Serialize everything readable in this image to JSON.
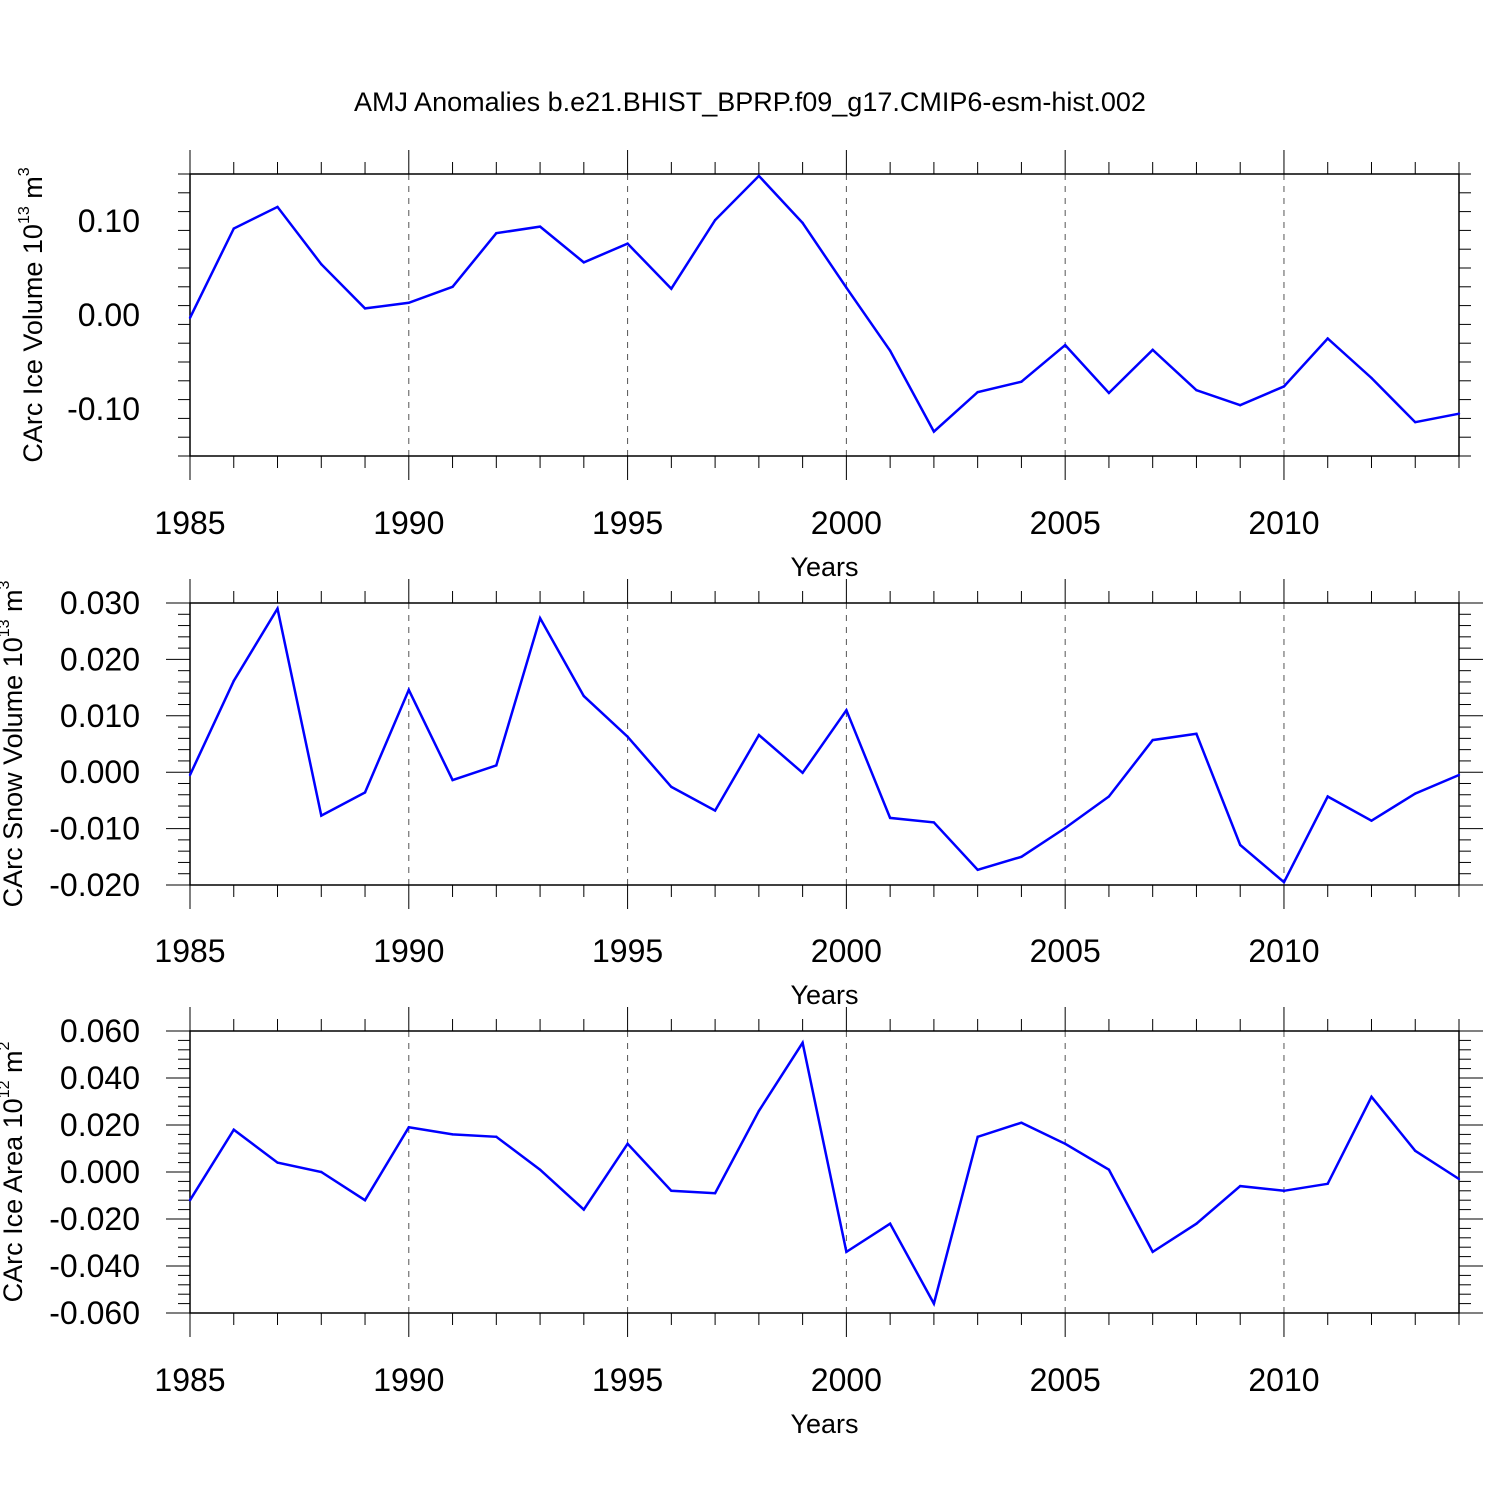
{
  "title": "AMJ Anomalies b.e21.BHIST_BPRP.f09_g17.CMIP6-esm-hist.002",
  "colors": {
    "series": "#0000ff",
    "axes": "#000000",
    "grid": "#555555"
  },
  "chart_data": [
    {
      "type": "line",
      "ylabel": {
        "base": "CArc Ice Volume 10",
        "exp": "13",
        "unit": " m",
        "unit_exp": "3"
      },
      "xlabel": "Years",
      "xlim": [
        1985,
        2014
      ],
      "ylim": [
        -0.15,
        0.15
      ],
      "xticks": [
        1985,
        1990,
        1995,
        2000,
        2005,
        2010
      ],
      "xtick_labels": [
        "1985",
        "1990",
        "1995",
        "2000",
        "2005",
        "2010"
      ],
      "yticks": [
        -0.1,
        0.0,
        0.1
      ],
      "ytick_labels": [
        "-0.10",
        "0.00",
        "0.10"
      ],
      "vgrid": [
        1990,
        1995,
        2000,
        2005,
        2010
      ],
      "series": [
        {
          "x": [
            1985,
            1986,
            1987,
            1988,
            1989,
            1990,
            1991,
            1992,
            1993,
            1994,
            1995,
            1996,
            1997,
            1998,
            1999,
            2000,
            2001,
            2002,
            2003,
            2004,
            2005,
            2006,
            2007,
            2008,
            2009,
            2010,
            2011,
            2012,
            2013,
            2014
          ],
          "values": [
            -0.003,
            0.092,
            0.115,
            0.054,
            0.007,
            0.013,
            0.03,
            0.087,
            0.094,
            0.056,
            0.076,
            0.028,
            0.101,
            0.148,
            0.098,
            0.029,
            -0.038,
            -0.124,
            -0.082,
            -0.071,
            -0.032,
            -0.083,
            -0.037,
            -0.08,
            -0.096,
            -0.076,
            -0.025,
            -0.067,
            -0.114,
            -0.105
          ]
        }
      ]
    },
    {
      "type": "line",
      "ylabel": {
        "base": "CArc Snow Volume 10",
        "exp": "13",
        "unit": " m",
        "unit_exp": "3"
      },
      "xlabel": "Years",
      "xlim": [
        1985,
        2014
      ],
      "ylim": [
        -0.02,
        0.03
      ],
      "xticks": [
        1985,
        1990,
        1995,
        2000,
        2005,
        2010
      ],
      "xtick_labels": [
        "1985",
        "1990",
        "1995",
        "2000",
        "2005",
        "2010"
      ],
      "yticks": [
        -0.02,
        -0.01,
        0.0,
        0.01,
        0.02,
        0.03
      ],
      "ytick_labels": [
        "-0.020",
        "-0.010",
        "0.000",
        "0.010",
        "0.020",
        "0.030"
      ],
      "vgrid": [
        1990,
        1995,
        2000,
        2005,
        2010
      ],
      "series": [
        {
          "x": [
            1985,
            1986,
            1987,
            1988,
            1989,
            1990,
            1991,
            1992,
            1993,
            1994,
            1995,
            1996,
            1997,
            1998,
            1999,
            2000,
            2001,
            2002,
            2003,
            2004,
            2005,
            2006,
            2007,
            2008,
            2009,
            2010,
            2011,
            2012,
            2013,
            2014
          ],
          "values": [
            -0.0005,
            0.0162,
            0.029,
            -0.0077,
            -0.0036,
            0.0146,
            -0.0014,
            0.0012,
            0.0273,
            0.0135,
            0.0063,
            -0.0026,
            -0.0068,
            0.0066,
            -0.0001,
            0.011,
            -0.0081,
            -0.0089,
            -0.0173,
            -0.015,
            -0.0099,
            -0.0043,
            0.0057,
            0.0068,
            -0.0129,
            -0.0195,
            -0.0043,
            -0.0086,
            -0.0038,
            -0.0005
          ]
        }
      ]
    },
    {
      "type": "line",
      "ylabel": {
        "base": "CArc Ice Area 10",
        "exp": "12",
        "unit": " m",
        "unit_exp": "2"
      },
      "xlabel": "Years",
      "xlim": [
        1985,
        2014
      ],
      "ylim": [
        -0.06,
        0.06
      ],
      "xticks": [
        1985,
        1990,
        1995,
        2000,
        2005,
        2010
      ],
      "xtick_labels": [
        "1985",
        "1990",
        "1995",
        "2000",
        "2005",
        "2010"
      ],
      "yticks": [
        -0.06,
        -0.04,
        -0.02,
        0.0,
        0.02,
        0.04,
        0.06
      ],
      "ytick_labels": [
        "-0.060",
        "-0.040",
        "-0.020",
        "0.000",
        "0.020",
        "0.040",
        "0.060"
      ],
      "vgrid": [
        1990,
        1995,
        2000,
        2005,
        2010
      ],
      "series": [
        {
          "x": [
            1985,
            1986,
            1987,
            1988,
            1989,
            1990,
            1991,
            1992,
            1993,
            1994,
            1995,
            1996,
            1997,
            1998,
            1999,
            2000,
            2001,
            2002,
            2003,
            2004,
            2005,
            2006,
            2007,
            2008,
            2009,
            2010,
            2011,
            2012,
            2013,
            2014
          ],
          "values": [
            -0.012,
            0.018,
            0.004,
            0.0,
            -0.012,
            0.019,
            0.016,
            0.015,
            0.001,
            -0.016,
            0.012,
            -0.008,
            -0.009,
            0.026,
            0.055,
            -0.034,
            -0.022,
            -0.056,
            0.015,
            0.021,
            0.012,
            0.001,
            -0.034,
            -0.022,
            -0.006,
            -0.008,
            -0.005,
            0.032,
            0.009,
            -0.003
          ]
        }
      ]
    }
  ]
}
